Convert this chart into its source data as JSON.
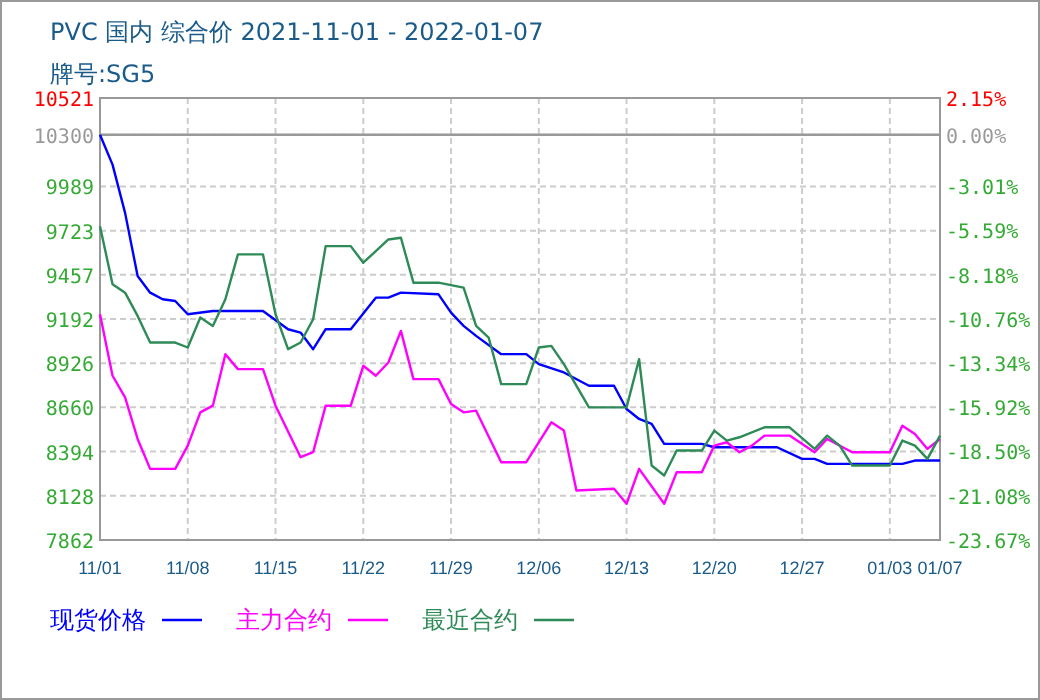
{
  "chart_data": {
    "type": "line",
    "title": "PVC 国内 综合价 2021-11-01 - 2022-01-07",
    "subtitle": "牌号:SG5",
    "xlim": [
      "2021-11-01",
      "2022-01-07"
    ],
    "xticks": [
      {
        "value": "2021-11-01",
        "label": "11/01"
      },
      {
        "value": "2021-11-08",
        "label": "11/08"
      },
      {
        "value": "2021-11-15",
        "label": "11/15"
      },
      {
        "value": "2021-11-22",
        "label": "11/22"
      },
      {
        "value": "2021-11-29",
        "label": "11/29"
      },
      {
        "value": "2021-12-06",
        "label": "12/06"
      },
      {
        "value": "2021-12-13",
        "label": "12/13"
      },
      {
        "value": "2021-12-20",
        "label": "12/20"
      },
      {
        "value": "2021-12-27",
        "label": "12/27"
      },
      {
        "value": "2022-01-03",
        "label": "01/03"
      },
      {
        "value": "2022-01-07",
        "label": "01/07"
      }
    ],
    "ylim": [
      7862,
      10521
    ],
    "yticks": [
      7862,
      8128,
      8394,
      8660,
      8926,
      9192,
      9457,
      9723,
      9989,
      10300,
      10521
    ],
    "y2lim": [
      -23.67,
      2.15
    ],
    "y2ticks": [
      {
        "value": -23.67,
        "label": "-23.67%"
      },
      {
        "value": -21.08,
        "label": "-21.08%"
      },
      {
        "value": -18.5,
        "label": "-18.50%"
      },
      {
        "value": -15.92,
        "label": "-15.92%"
      },
      {
        "value": -13.34,
        "label": "-13.34%"
      },
      {
        "value": -10.76,
        "label": "-10.76%"
      },
      {
        "value": -8.18,
        "label": "-8.18%"
      },
      {
        "value": -5.59,
        "label": "-5.59%"
      },
      {
        "value": -3.01,
        "label": "-3.01%"
      },
      {
        "value": 0,
        "label": "0.00%"
      },
      {
        "value": 2.15,
        "label": "2.15%"
      }
    ],
    "ref_lines": [
      {
        "axis": "y",
        "value": 10300,
        "color": "#999999"
      }
    ],
    "grid": true,
    "legend": "bottom",
    "marker": "none",
    "line_style": "solid",
    "series": [
      {
        "name": "现货价格",
        "color": "#0000ff",
        "x": [
          "2021-11-01",
          "2021-11-02",
          "2021-11-03",
          "2021-11-04",
          "2021-11-05",
          "2021-11-06",
          "2021-11-07",
          "2021-11-08",
          "2021-11-10",
          "2021-11-14",
          "2021-11-16",
          "2021-11-17",
          "2021-11-18",
          "2021-11-19",
          "2021-11-21",
          "2021-11-23",
          "2021-11-24",
          "2021-11-25",
          "2021-11-28",
          "2021-11-29",
          "2021-11-30",
          "2021-12-01",
          "2021-12-03",
          "2021-12-05",
          "2021-12-06",
          "2021-12-08",
          "2021-12-10",
          "2021-12-12",
          "2021-12-13",
          "2021-12-14",
          "2021-12-15",
          "2021-12-16",
          "2021-12-19",
          "2021-12-20",
          "2021-12-25",
          "2021-12-27",
          "2021-12-28",
          "2021-12-29",
          "2022-01-04",
          "2022-01-05",
          "2022-01-07"
        ],
        "values": [
          10300,
          10120,
          9830,
          9450,
          9350,
          9310,
          9300,
          9220,
          9240,
          9240,
          9130,
          9110,
          9010,
          9130,
          9130,
          9320,
          9320,
          9350,
          9340,
          9230,
          9150,
          9090,
          8980,
          8980,
          8920,
          8870,
          8790,
          8790,
          8650,
          8590,
          8560,
          8440,
          8440,
          8420,
          8420,
          8350,
          8350,
          8320,
          8320,
          8340,
          8340
        ]
      },
      {
        "name": "主力合约",
        "color": "#ff00ff",
        "x": [
          "2021-11-01",
          "2021-11-02",
          "2021-11-03",
          "2021-11-04",
          "2021-11-05",
          "2021-11-07",
          "2021-11-08",
          "2021-11-09",
          "2021-11-10",
          "2021-11-11",
          "2021-11-12",
          "2021-11-14",
          "2021-11-15",
          "2021-11-17",
          "2021-11-18",
          "2021-11-19",
          "2021-11-21",
          "2021-11-22",
          "2021-11-23",
          "2021-11-24",
          "2021-11-25",
          "2021-11-26",
          "2021-11-28",
          "2021-11-29",
          "2021-11-30",
          "2021-12-01",
          "2021-12-03",
          "2021-12-05",
          "2021-12-07",
          "2021-12-08",
          "2021-12-09",
          "2021-12-12",
          "2021-12-13",
          "2021-12-14",
          "2021-12-16",
          "2021-12-17",
          "2021-12-19",
          "2021-12-20",
          "2021-12-21",
          "2021-12-22",
          "2021-12-23",
          "2021-12-24",
          "2021-12-26",
          "2021-12-28",
          "2021-12-29",
          "2021-12-31",
          "2022-01-03",
          "2022-01-04",
          "2022-01-05",
          "2022-01-06",
          "2022-01-07"
        ],
        "values": [
          9220,
          8850,
          8720,
          8470,
          8290,
          8290,
          8430,
          8630,
          8670,
          8980,
          8890,
          8890,
          8670,
          8360,
          8390,
          8670,
          8670,
          8910,
          8850,
          8930,
          9120,
          8830,
          8830,
          8680,
          8630,
          8640,
          8330,
          8330,
          8570,
          8520,
          8160,
          8170,
          8080,
          8290,
          8080,
          8270,
          8270,
          8430,
          8450,
          8390,
          8430,
          8490,
          8490,
          8390,
          8470,
          8390,
          8390,
          8550,
          8500,
          8410,
          8470
        ]
      },
      {
        "name": "最近合约",
        "color": "#2e8b57",
        "x": [
          "2021-11-01",
          "2021-11-02",
          "2021-11-03",
          "2021-11-04",
          "2021-11-05",
          "2021-11-07",
          "2021-11-08",
          "2021-11-09",
          "2021-11-10",
          "2021-11-11",
          "2021-11-12",
          "2021-11-14",
          "2021-11-15",
          "2021-11-16",
          "2021-11-17",
          "2021-11-18",
          "2021-11-19",
          "2021-11-21",
          "2021-11-22",
          "2021-11-23",
          "2021-11-24",
          "2021-11-25",
          "2021-11-26",
          "2021-11-28",
          "2021-11-30",
          "2021-12-01",
          "2021-12-02",
          "2021-12-03",
          "2021-12-05",
          "2021-12-06",
          "2021-12-07",
          "2021-12-08",
          "2021-12-10",
          "2021-12-13",
          "2021-12-14",
          "2021-12-15",
          "2021-12-16",
          "2021-12-17",
          "2021-12-19",
          "2021-12-20",
          "2021-12-21",
          "2021-12-22",
          "2021-12-24",
          "2021-12-26",
          "2021-12-28",
          "2021-12-29",
          "2021-12-30",
          "2021-12-31",
          "2022-01-03",
          "2022-01-04",
          "2022-01-05",
          "2022-01-06",
          "2022-01-07"
        ],
        "values": [
          9750,
          9400,
          9350,
          9210,
          9050,
          9050,
          9020,
          9200,
          9150,
          9310,
          9580,
          9580,
          9220,
          9010,
          9050,
          9190,
          9630,
          9630,
          9530,
          9600,
          9670,
          9680,
          9410,
          9410,
          9380,
          9150,
          9080,
          8800,
          8800,
          9020,
          9030,
          8920,
          8660,
          8660,
          8950,
          8310,
          8250,
          8400,
          8400,
          8520,
          8460,
          8480,
          8540,
          8540,
          8410,
          8490,
          8430,
          8310,
          8310,
          8460,
          8430,
          8350,
          8490
        ]
      }
    ]
  }
}
